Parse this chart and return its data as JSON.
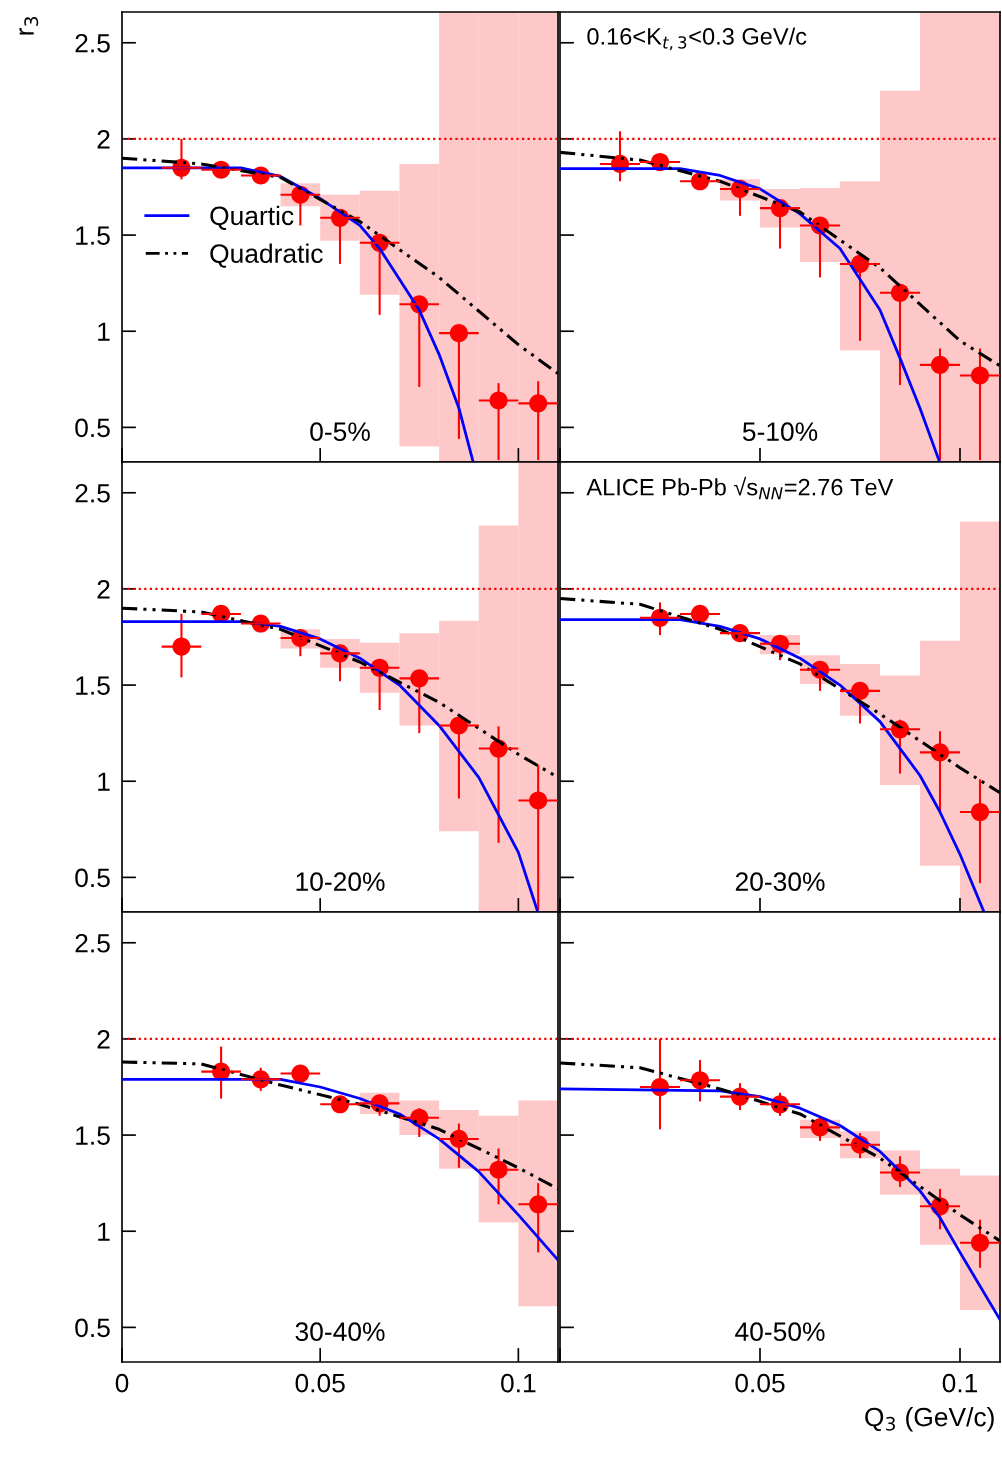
{
  "chart_data": [
    {
      "type": "scatter",
      "ylabel": "r$_{3}$",
      "annotations": [
        "0-5%"
      ],
      "xlim": [
        0,
        0.11
      ],
      "ylim": [
        0.32,
        2.66
      ],
      "xticks": [
        0,
        0.05,
        0.1
      ],
      "yticks": [
        0.5,
        1,
        1.5,
        2,
        2.5
      ],
      "tick_labels": "y",
      "legend": "center left",
      "grid": false,
      "x": [
        0.015,
        0.025,
        0.035,
        0.045,
        0.055,
        0.065,
        0.075,
        0.085,
        0.095,
        0.105
      ],
      "ref_lines": [
        {
          "axis": "y",
          "value": 2,
          "color": "#ff0000",
          "line_style": "dotted"
        }
      ],
      "series": [
        {
          "type": "bar",
          "color": "#ffc8c8",
          "x": [
            0.045,
            0.055,
            0.065,
            0.075,
            0.085,
            0.095,
            0.105
          ],
          "base": [
            1.65,
            1.47,
            1.19,
            0.4,
            0.32,
            0.32,
            0.32
          ],
          "values": [
            0.12,
            0.24,
            0.54,
            1.47,
            2.34,
            2.34,
            2.34
          ]
        },
        {
          "color": "#ff0000",
          "marker": "circle",
          "values": [
            1.85,
            1.84,
            1.81,
            1.71,
            1.59,
            1.46,
            1.14,
            0.99,
            0.64,
            0.625
          ],
          "errors": [
            [
              1.79,
              2.0
            ],
            null,
            null,
            [
              1.55,
              1.73
            ],
            [
              1.35,
              1.61
            ],
            [
              1.085,
              1.48
            ],
            [
              0.71,
              1.17
            ],
            [
              0.44,
              1.02
            ],
            [
              0.33,
              0.73
            ],
            [
              0.33,
              0.74
            ]
          ],
          "xerrors": [
            0.005,
            0.005,
            0.005,
            0.005,
            0.005,
            0.005,
            0.005,
            0.005,
            0.005,
            0.005
          ]
        },
        {
          "type": "line",
          "name": "Quartic",
          "color": "#0000ff",
          "line_style": "solid",
          "x": [
            0,
            0.03,
            0.04,
            0.05,
            0.06,
            0.065,
            0.075,
            0.08,
            0.085,
            0.0886
          ],
          "values": [
            1.85,
            1.85,
            1.805,
            1.69,
            1.55,
            1.43,
            1.11,
            0.88,
            0.6,
            0.32
          ]
        },
        {
          "type": "line",
          "name": "Quadratic",
          "color": "#000000",
          "line_style": "dashed",
          "x": [
            0,
            0.02,
            0.04,
            0.06,
            0.08,
            0.1,
            0.11
          ],
          "values": [
            1.9,
            1.87,
            1.8,
            1.57,
            1.28,
            0.93,
            0.78
          ]
        }
      ]
    },
    {
      "type": "scatter",
      "annotations": [
        "5-10%",
        "0.16<K$_{t,3}$<0.3 GeV/c"
      ],
      "xlim": [
        0,
        0.11
      ],
      "ylim": [
        0.32,
        2.66
      ],
      "xticks": [
        0,
        0.05,
        0.1
      ],
      "yticks": [
        0.5,
        1,
        1.5,
        2,
        2.5
      ],
      "tick_labels": false,
      "grid": false,
      "x": [
        0.015,
        0.025,
        0.035,
        0.045,
        0.055,
        0.065,
        0.075,
        0.085,
        0.095,
        0.105
      ],
      "ref_lines": [
        {
          "axis": "y",
          "value": 2,
          "color": "#ff0000",
          "line_style": "dotted"
        }
      ],
      "series": [
        {
          "type": "bar",
          "color": "#ffc8c8",
          "x": [
            0.045,
            0.055,
            0.065,
            0.075,
            0.085,
            0.095,
            0.105
          ],
          "base": [
            1.68,
            1.54,
            1.36,
            0.9,
            0.32,
            0.32,
            0.32
          ],
          "values": [
            0.11,
            0.2,
            0.385,
            0.88,
            1.93,
            2.34,
            2.34
          ]
        },
        {
          "color": "#ff0000",
          "marker": "circle",
          "values": [
            1.87,
            1.88,
            1.78,
            1.74,
            1.64,
            1.55,
            1.35,
            1.2,
            0.825,
            0.77
          ],
          "errors": [
            [
              1.78,
              2.04
            ],
            null,
            null,
            [
              1.6,
              1.76
            ],
            [
              1.43,
              1.66
            ],
            [
              1.28,
              1.57
            ],
            [
              0.95,
              1.38
            ],
            [
              0.72,
              1.23
            ],
            [
              0.33,
              0.91
            ],
            [
              0.33,
              0.91
            ]
          ],
          "xerrors": [
            0.005,
            0.005,
            0.005,
            0.005,
            0.005,
            0.005,
            0.005,
            0.005,
            0.005,
            0.005
          ]
        },
        {
          "type": "line",
          "color": "#0000ff",
          "line_style": "solid",
          "x": [
            0,
            0.03,
            0.04,
            0.05,
            0.06,
            0.07,
            0.08,
            0.085,
            0.09,
            0.0949
          ],
          "values": [
            1.845,
            1.845,
            1.81,
            1.74,
            1.61,
            1.43,
            1.11,
            0.86,
            0.6,
            0.32
          ]
        },
        {
          "type": "line",
          "color": "#000000",
          "line_style": "dashed",
          "x": [
            0,
            0.02,
            0.04,
            0.06,
            0.08,
            0.1,
            0.11
          ],
          "values": [
            1.93,
            1.89,
            1.78,
            1.62,
            1.33,
            0.95,
            0.82
          ]
        }
      ]
    },
    {
      "type": "scatter",
      "annotations": [
        "10-20%"
      ],
      "xlim": [
        0,
        0.11
      ],
      "ylim": [
        0.32,
        2.66
      ],
      "xticks": [
        0,
        0.05,
        0.1
      ],
      "yticks": [
        0.5,
        1,
        1.5,
        2,
        2.5
      ],
      "tick_labels": "y",
      "grid": false,
      "x": [
        0.015,
        0.025,
        0.035,
        0.045,
        0.055,
        0.065,
        0.075,
        0.085,
        0.095,
        0.105
      ],
      "ref_lines": [
        {
          "axis": "y",
          "value": 2,
          "color": "#ff0000",
          "line_style": "dotted"
        }
      ],
      "series": [
        {
          "type": "bar",
          "color": "#ffc8c8",
          "x": [
            0.045,
            0.055,
            0.065,
            0.075,
            0.085,
            0.095,
            0.105
          ],
          "base": [
            1.69,
            1.59,
            1.46,
            1.29,
            0.74,
            0.32,
            0.32
          ],
          "values": [
            0.1,
            0.15,
            0.26,
            0.48,
            1.095,
            2.01,
            2.34
          ]
        },
        {
          "color": "#ff0000",
          "marker": "circle",
          "values": [
            1.7,
            1.87,
            1.82,
            1.745,
            1.665,
            1.59,
            1.535,
            1.29,
            1.17,
            0.9
          ],
          "errors": [
            [
              1.54,
              1.87
            ],
            null,
            null,
            [
              1.65,
              1.765
            ],
            [
              1.52,
              1.685
            ],
            [
              1.37,
              1.59
            ],
            [
              1.25,
              1.535
            ],
            [
              0.91,
              1.32
            ],
            [
              0.68,
              1.285
            ],
            [
              0.33,
              1.085
            ]
          ],
          "xerrors": [
            0.005,
            0.005,
            0.005,
            0.005,
            0.005,
            0.005,
            0.005,
            0.005,
            0.005,
            0.005
          ]
        },
        {
          "type": "line",
          "color": "#0000ff",
          "line_style": "solid",
          "x": [
            0,
            0.03,
            0.04,
            0.05,
            0.06,
            0.07,
            0.08,
            0.09,
            0.1,
            0.1049
          ],
          "values": [
            1.83,
            1.83,
            1.805,
            1.74,
            1.64,
            1.5,
            1.29,
            1.02,
            0.63,
            0.32
          ]
        },
        {
          "type": "line",
          "color": "#000000",
          "line_style": "dashed",
          "x": [
            0,
            0.02,
            0.04,
            0.06,
            0.08,
            0.1,
            0.11
          ],
          "values": [
            1.9,
            1.88,
            1.79,
            1.62,
            1.41,
            1.14,
            1.02
          ]
        }
      ]
    },
    {
      "type": "scatter",
      "annotations": [
        "20-30%",
        "ALICE Pb-Pb √s$_{NN}$=2.76 TeV"
      ],
      "xlim": [
        0,
        0.11
      ],
      "ylim": [
        0.32,
        2.66
      ],
      "xticks": [
        0,
        0.05,
        0.1
      ],
      "yticks": [
        0.5,
        1,
        1.5,
        2,
        2.5
      ],
      "tick_labels": false,
      "grid": false,
      "x": [
        0.025,
        0.035,
        0.045,
        0.055,
        0.065,
        0.075,
        0.085,
        0.095,
        0.105
      ],
      "ref_lines": [
        {
          "axis": "y",
          "value": 2,
          "color": "#ff0000",
          "line_style": "dotted"
        }
      ],
      "series": [
        {
          "type": "bar",
          "color": "#ffc8c8",
          "x": [
            0.055,
            0.065,
            0.075,
            0.085,
            0.095,
            0.105
          ],
          "base": [
            1.66,
            1.505,
            1.34,
            0.98,
            0.56,
            0.32
          ],
          "values": [
            0.1,
            0.15,
            0.27,
            0.57,
            1.17,
            2.03
          ]
        },
        {
          "color": "#ff0000",
          "marker": "circle",
          "values": [
            1.85,
            1.87,
            1.77,
            1.715,
            1.58,
            1.47,
            1.27,
            1.15,
            0.84
          ],
          "errors": [
            [
              1.76,
              1.93
            ],
            null,
            null,
            [
              1.63,
              1.715
            ],
            [
              1.47,
              1.6
            ],
            [
              1.3,
              1.47
            ],
            [
              1.04,
              1.32
            ],
            [
              0.84,
              1.26
            ],
            [
              0.47,
              1.01
            ]
          ],
          "xerrors": [
            0.005,
            0.005,
            0.005,
            0.005,
            0.005,
            0.005,
            0.005,
            0.005,
            0.005
          ]
        },
        {
          "type": "line",
          "color": "#0000ff",
          "line_style": "solid",
          "x": [
            0,
            0.03,
            0.04,
            0.05,
            0.06,
            0.07,
            0.08,
            0.09,
            0.095,
            0.1,
            0.106
          ],
          "values": [
            1.84,
            1.84,
            1.805,
            1.74,
            1.64,
            1.5,
            1.31,
            1.03,
            0.84,
            0.62,
            0.32
          ]
        },
        {
          "type": "line",
          "color": "#000000",
          "line_style": "dashed",
          "x": [
            0,
            0.02,
            0.04,
            0.06,
            0.08,
            0.1,
            0.11
          ],
          "values": [
            1.95,
            1.92,
            1.79,
            1.61,
            1.35,
            1.07,
            0.94
          ]
        }
      ]
    },
    {
      "type": "scatter",
      "annotations": [
        "30-40%"
      ],
      "xlim": [
        0,
        0.11
      ],
      "ylim": [
        0.32,
        2.66
      ],
      "xticks": [
        0,
        0.05,
        0.1
      ],
      "yticks": [
        0.5,
        1,
        1.5,
        2,
        2.5
      ],
      "grid": false,
      "x": [
        0.025,
        0.035,
        0.045,
        0.055,
        0.065,
        0.075,
        0.085,
        0.095,
        0.105
      ],
      "ref_lines": [
        {
          "axis": "y",
          "value": 2,
          "color": "#ff0000",
          "line_style": "dotted"
        }
      ],
      "series": [
        {
          "type": "bar",
          "color": "#ffc8c8",
          "x": [
            0.065,
            0.075,
            0.085,
            0.095,
            0.105
          ],
          "base": [
            1.61,
            1.5,
            1.325,
            1.045,
            0.61
          ],
          "values": [
            0.11,
            0.18,
            0.305,
            0.555,
            1.07
          ]
        },
        {
          "color": "#ff0000",
          "marker": "circle",
          "values": [
            1.83,
            1.79,
            1.82,
            1.66,
            1.665,
            1.59,
            1.48,
            1.32,
            1.14
          ],
          "errors": [
            [
              1.69,
              1.96
            ],
            0.06,
            null,
            null,
            [
              1.6,
              1.665
            ],
            [
              1.49,
              1.64
            ],
            [
              1.33,
              1.56
            ],
            [
              1.14,
              1.43
            ],
            [
              0.89,
              1.25
            ]
          ],
          "xerrors": [
            0.005,
            0.005,
            0.005,
            0.005,
            0.005,
            0.005,
            0.005,
            0.005,
            0.005
          ]
        },
        {
          "type": "line",
          "color": "#0000ff",
          "line_style": "solid",
          "x": [
            0,
            0.04,
            0.05,
            0.06,
            0.07,
            0.08,
            0.09,
            0.1,
            0.11
          ],
          "values": [
            1.79,
            1.79,
            1.75,
            1.69,
            1.61,
            1.48,
            1.31,
            1.085,
            0.85
          ]
        },
        {
          "type": "line",
          "color": "#000000",
          "line_style": "dashed",
          "x": [
            0,
            0.02,
            0.04,
            0.06,
            0.08,
            0.1,
            0.11
          ],
          "values": [
            1.88,
            1.87,
            1.76,
            1.66,
            1.53,
            1.33,
            1.22
          ]
        }
      ]
    },
    {
      "type": "scatter",
      "xlabel": "Q$_{3}$ (GeV/c)",
      "annotations": [
        "40-50%"
      ],
      "xlim": [
        0,
        0.11
      ],
      "ylim": [
        0.32,
        2.66
      ],
      "xticks": [
        {
          "value": 0,
          "label": null
        },
        0.05,
        0.1
      ],
      "yticks": [
        0.5,
        1,
        1.5,
        2,
        2.5
      ],
      "tick_labels": "x",
      "grid": false,
      "x": [
        0.025,
        0.035,
        0.045,
        0.055,
        0.065,
        0.075,
        0.085,
        0.095,
        0.105
      ],
      "ref_lines": [
        {
          "axis": "y",
          "value": 2,
          "color": "#ff0000",
          "line_style": "dotted"
        }
      ],
      "series": [
        {
          "type": "bar",
          "color": "#ffc8c8",
          "x": [
            0.065,
            0.075,
            0.085,
            0.095,
            0.105
          ],
          "base": [
            1.485,
            1.38,
            1.19,
            0.93,
            0.59
          ],
          "values": [
            0.095,
            0.14,
            0.23,
            0.395,
            0.7
          ]
        },
        {
          "color": "#ff0000",
          "marker": "circle",
          "values": [
            1.75,
            1.785,
            1.7,
            1.66,
            1.54,
            1.45,
            1.305,
            1.13,
            0.94
          ],
          "errors": [
            [
              1.53,
              2.0
            ],
            [
              1.675,
              1.89
            ],
            0.07,
            0.06,
            [
              1.47,
              1.6
            ],
            [
              1.38,
              1.51
            ],
            [
              1.23,
              1.39
            ],
            [
              1.01,
              1.22
            ],
            [
              0.81,
              1.06
            ]
          ],
          "xerrors": [
            0.005,
            0.005,
            0.005,
            0.005,
            0.005,
            0.005,
            0.005,
            0.005,
            0.005
          ]
        },
        {
          "type": "line",
          "color": "#0000ff",
          "line_style": "solid",
          "x": [
            0,
            0.04,
            0.05,
            0.06,
            0.07,
            0.08,
            0.09,
            0.095,
            0.1,
            0.11
          ],
          "values": [
            1.74,
            1.73,
            1.7,
            1.64,
            1.55,
            1.415,
            1.21,
            1.07,
            0.89,
            0.54
          ]
        },
        {
          "type": "line",
          "color": "#000000",
          "line_style": "dashed",
          "x": [
            0,
            0.02,
            0.04,
            0.06,
            0.08,
            0.1,
            0.11
          ],
          "values": [
            1.875,
            1.85,
            1.74,
            1.61,
            1.38,
            1.085,
            0.95
          ]
        }
      ]
    }
  ]
}
